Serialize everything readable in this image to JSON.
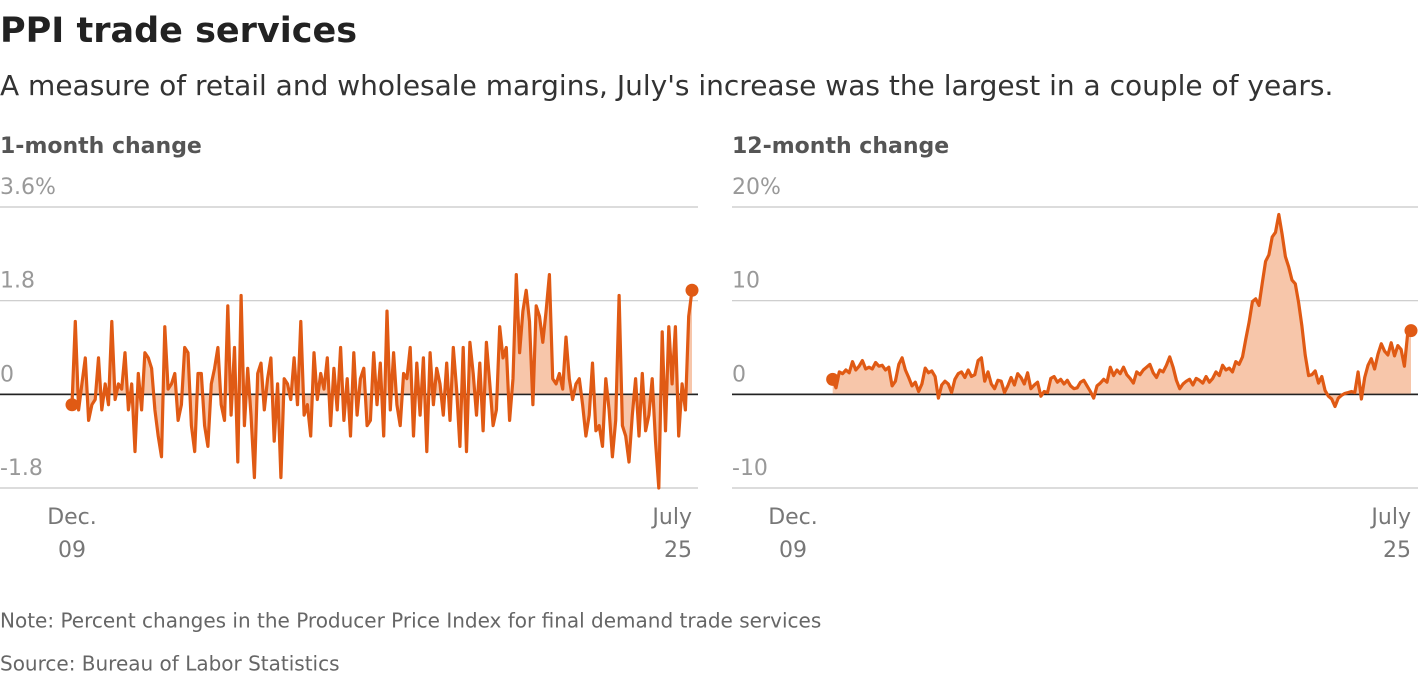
{
  "title": "PPI trade services",
  "subtitle": "A measure of retail and wholesale margins, July's increase was the largest in a couple of years.",
  "note": "Note: Percent changes in the Producer Price Index for final demand trade services",
  "source": "Source: Bureau of Labor Statistics",
  "chart_data": [
    {
      "type": "line",
      "title": "1-month change",
      "color": "#e05a14",
      "fill_color": "#f7c6aa",
      "ylim": [
        -1.8,
        3.6
      ],
      "yticks": [
        {
          "value": 3.6,
          "label": "3.6%"
        },
        1.8,
        0,
        -1.8
      ],
      "categories": [
        "Dec. 09",
        null,
        null,
        null,
        null,
        null,
        null,
        null,
        null,
        null,
        null,
        null,
        null,
        null,
        null,
        null,
        null,
        null,
        null,
        null,
        null,
        null,
        null,
        null,
        null,
        null,
        null,
        null,
        null,
        null,
        null,
        null,
        null,
        null,
        null,
        null,
        null,
        null,
        null,
        null,
        null,
        null,
        null,
        null,
        null,
        null,
        null,
        null,
        null,
        null,
        null,
        null,
        null,
        null,
        null,
        null,
        null,
        null,
        null,
        null,
        null,
        null,
        null,
        null,
        null,
        null,
        null,
        null,
        null,
        null,
        null,
        null,
        null,
        null,
        null,
        null,
        null,
        null,
        null,
        null,
        null,
        null,
        null,
        null,
        null,
        null,
        null,
        null,
        null,
        null,
        null,
        null,
        null,
        null,
        null,
        null,
        null,
        null,
        null,
        null,
        null,
        null,
        null,
        null,
        null,
        null,
        null,
        null,
        null,
        null,
        null,
        null,
        null,
        null,
        null,
        null,
        null,
        null,
        null,
        null,
        null,
        null,
        null,
        null,
        null,
        null,
        null,
        null,
        null,
        null,
        null,
        null,
        null,
        null,
        null,
        null,
        null,
        null,
        null,
        null,
        null,
        null,
        null,
        null,
        null,
        null,
        null,
        null,
        null,
        null,
        null,
        null,
        null,
        null,
        null,
        null,
        null,
        null,
        null,
        null,
        null,
        null,
        null,
        null,
        null,
        null,
        null,
        null,
        null,
        null,
        null,
        null,
        null,
        null,
        null,
        null,
        null,
        null,
        null,
        null,
        null,
        null,
        null,
        null,
        null,
        null,
        null,
        "July 25"
      ],
      "values": [
        -0.2,
        1.4,
        -0.3,
        0.2,
        0.7,
        -0.5,
        -0.2,
        -0.1,
        0.7,
        -0.3,
        0.2,
        -0.2,
        1.4,
        -0.1,
        0.2,
        0.1,
        0.8,
        -0.3,
        0.2,
        -1.1,
        0.4,
        -0.3,
        0.8,
        0.7,
        0.5,
        -0.3,
        -0.8,
        -1.2,
        1.3,
        0.1,
        0.2,
        0.4,
        -0.5,
        -0.2,
        0.9,
        0.8,
        -0.6,
        -1.1,
        0.4,
        0.4,
        -0.6,
        -1.0,
        0.2,
        0.5,
        0.9,
        -0.2,
        -0.5,
        1.7,
        -0.4,
        0.9,
        -1.3,
        1.9,
        -0.6,
        0.5,
        -0.4,
        -1.6,
        0.4,
        0.6,
        -0.3,
        0.3,
        0.7,
        -0.9,
        0.2,
        -1.6,
        0.3,
        0.2,
        -0.1,
        0.7,
        -0.2,
        1.4,
        -0.4,
        -0.2,
        -0.8,
        0.8,
        -0.1,
        0.4,
        0.1,
        0.7,
        -0.6,
        0.5,
        -0.3,
        0.9,
        -0.5,
        0.3,
        -0.8,
        0.8,
        -0.4,
        0.3,
        0.5,
        -0.6,
        -0.5,
        0.8,
        -0.2,
        0.6,
        -0.8,
        1.6,
        -0.3,
        0.8,
        -0.2,
        -0.6,
        0.4,
        0.3,
        0.9,
        -0.8,
        0.6,
        -0.4,
        0.7,
        -1.1,
        0.8,
        -0.2,
        0.5,
        0.2,
        -0.4,
        0.6,
        -0.5,
        0.9,
        0.1,
        -1.0,
        0.9,
        -1.1,
        1.0,
        0.4,
        -0.4,
        0.6,
        -0.7,
        1.0,
        0.2,
        -0.6,
        -0.3,
        1.3,
        0.7,
        0.9,
        -0.5,
        0.3,
        2.3,
        0.8,
        1.6,
        2.0,
        1.4,
        -0.2,
        1.7,
        1.5,
        1.0,
        1.6,
        2.3,
        0.3,
        0.2,
        0.4,
        0.1,
        1.1,
        0.3,
        -0.1,
        0.2,
        0.3,
        -0.2,
        -0.8,
        -0.4,
        0.6,
        -0.7,
        -0.6,
        -1.0,
        0.3,
        -0.3,
        -1.2,
        -0.5,
        1.9,
        -0.6,
        -0.8,
        -1.3,
        -0.4,
        0.3,
        -0.8,
        0.4,
        -0.7,
        -0.4,
        0.3,
        -0.9,
        -1.8,
        1.2,
        -0.7,
        1.3,
        0.2,
        1.3,
        -0.8,
        0.2,
        -0.3,
        1.5,
        2.0
      ]
    },
    {
      "type": "line",
      "title": "12-month change",
      "color": "#e05a14",
      "fill_color": "#f7c6aa",
      "ylim": [
        -10,
        20
      ],
      "yticks": [
        {
          "value": 20,
          "label": "20%"
        },
        10,
        0,
        -10
      ],
      "categories": [
        "Dec. 09",
        null,
        null,
        null,
        null,
        null,
        null,
        null,
        null,
        null,
        null,
        null,
        null,
        null,
        null,
        null,
        null,
        null,
        null,
        null,
        null,
        null,
        null,
        null,
        null,
        null,
        null,
        null,
        null,
        null,
        null,
        null,
        null,
        null,
        null,
        null,
        null,
        null,
        null,
        null,
        null,
        null,
        null,
        null,
        null,
        null,
        null,
        null,
        null,
        null,
        null,
        null,
        null,
        null,
        null,
        null,
        null,
        null,
        null,
        null,
        null,
        null,
        null,
        null,
        null,
        null,
        null,
        null,
        null,
        null,
        null,
        null,
        null,
        null,
        null,
        null,
        null,
        null,
        null,
        null,
        null,
        null,
        null,
        null,
        null,
        null,
        null,
        null,
        null,
        null,
        null,
        null,
        null,
        null,
        null,
        null,
        null,
        null,
        null,
        null,
        null,
        null,
        null,
        null,
        null,
        null,
        null,
        null,
        null,
        null,
        null,
        null,
        null,
        null,
        null,
        null,
        null,
        null,
        null,
        null,
        null,
        null,
        null,
        null,
        null,
        null,
        null,
        null,
        null,
        null,
        null,
        null,
        null,
        null,
        null,
        null,
        null,
        null,
        null,
        null,
        null,
        null,
        null,
        null,
        null,
        null,
        null,
        null,
        null,
        null,
        null,
        null,
        null,
        null,
        null,
        null,
        null,
        null,
        null,
        null,
        null,
        null,
        null,
        null,
        null,
        null,
        null,
        null,
        null,
        null,
        null,
        null,
        null,
        null,
        null,
        null,
        null,
        null,
        null,
        null,
        null,
        null,
        null,
        null,
        null,
        null,
        null,
        "July 25"
      ],
      "values": [
        null,
        null,
        null,
        null,
        null,
        null,
        null,
        null,
        null,
        null,
        null,
        null,
        1.6,
        0.7,
        2.4,
        2.2,
        2.6,
        2.3,
        3.5,
        2.6,
        3.0,
        3.6,
        2.7,
        2.9,
        2.7,
        3.4,
        3.0,
        3.1,
        2.6,
        2.9,
        0.9,
        1.4,
        3.2,
        3.9,
        2.6,
        1.8,
        0.9,
        1.3,
        0.3,
        1.1,
        2.8,
        2.3,
        2.5,
        1.9,
        -0.4,
        1.0,
        1.4,
        1.1,
        0.2,
        1.6,
        2.2,
        2.4,
        1.8,
        2.6,
        1.9,
        2.1,
        3.6,
        3.9,
        1.4,
        2.4,
        1.1,
        0.6,
        1.5,
        1.4,
        0.2,
        0.9,
        1.8,
        1.0,
        2.2,
        1.8,
        1.1,
        2.3,
        0.6,
        1.0,
        1.3,
        -0.2,
        0.3,
        0.2,
        1.7,
        1.9,
        1.3,
        1.6,
        1.1,
        1.5,
        0.9,
        0.6,
        0.7,
        1.3,
        1.5,
        0.9,
        0.3,
        -0.4,
        0.9,
        1.2,
        1.6,
        1.3,
        2.9,
        2.0,
        2.6,
        2.2,
        2.9,
        2.1,
        1.7,
        1.2,
        2.4,
        2.1,
        2.6,
        2.9,
        3.2,
        2.3,
        1.8,
        2.6,
        2.4,
        3.1,
        4.0,
        2.9,
        1.5,
        0.6,
        1.1,
        1.4,
        1.6,
        1.0,
        1.7,
        1.5,
        1.2,
        1.9,
        1.3,
        1.7,
        2.4,
        2.0,
        3.1,
        2.6,
        2.8,
        2.4,
        3.5,
        3.2,
        4.0,
        5.9,
        7.7,
        9.9,
        10.2,
        9.5,
        11.9,
        14.2,
        14.9,
        16.8,
        17.3,
        19.2,
        17.1,
        14.7,
        13.6,
        12.2,
        11.8,
        9.8,
        7.3,
        4.2,
        2.0,
        2.1,
        2.5,
        1.2,
        1.9,
        0.4,
        -0.2,
        -0.5,
        -1.3,
        -0.4,
        -0.1,
        0.1,
        0.2,
        0.3,
        0.2,
        2.4,
        -0.5,
        1.8,
        3.1,
        3.8,
        2.7,
        4.3,
        5.4,
        4.6,
        4.2,
        5.5,
        4.1,
        5.2,
        4.8,
        3.0,
        6.5,
        6.8
      ]
    }
  ]
}
